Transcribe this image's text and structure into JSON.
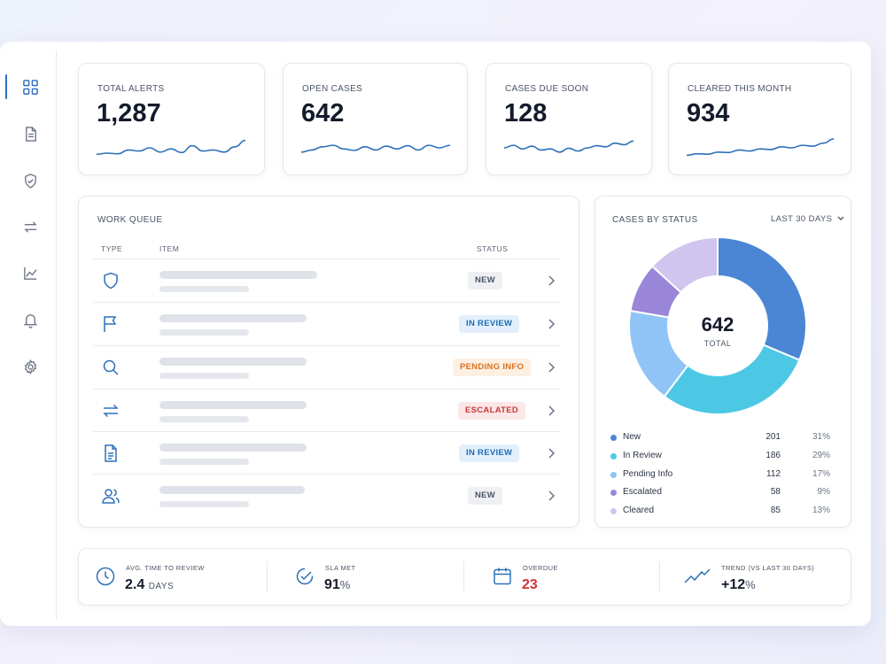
{
  "sidebar": {
    "items": [
      {
        "icon": "grid-icon",
        "active": true
      },
      {
        "icon": "document-icon",
        "active": false
      },
      {
        "icon": "shield-check-icon",
        "active": false
      },
      {
        "icon": "transfer-arrows-icon",
        "active": false
      },
      {
        "icon": "line-chart-icon",
        "active": false
      },
      {
        "icon": "bell-icon",
        "active": false
      },
      {
        "icon": "gear-icon",
        "active": false
      }
    ]
  },
  "kpis": [
    {
      "label": "TOTAL ALERTS",
      "value": "1,287",
      "trend": [
        0.2,
        0.25,
        0.22,
        0.4,
        0.35,
        0.5,
        0.3,
        0.45,
        0.28,
        0.6,
        0.35,
        0.4,
        0.3,
        0.55,
        0.85
      ]
    },
    {
      "label": "OPEN CASES",
      "value": "642",
      "trend": [
        0.3,
        0.4,
        0.55,
        0.62,
        0.45,
        0.38,
        0.55,
        0.4,
        0.58,
        0.45,
        0.6,
        0.4,
        0.62,
        0.5,
        0.62
      ]
    },
    {
      "label": "CASES DUE SOON",
      "value": "128",
      "trend": [
        0.5,
        0.62,
        0.45,
        0.58,
        0.4,
        0.45,
        0.3,
        0.48,
        0.35,
        0.5,
        0.6,
        0.55,
        0.72,
        0.65,
        0.82
      ]
    },
    {
      "label": "CLEARED THIS MONTH",
      "value": "934",
      "trend": [
        0.15,
        0.22,
        0.2,
        0.3,
        0.28,
        0.4,
        0.35,
        0.45,
        0.42,
        0.55,
        0.5,
        0.62,
        0.58,
        0.72,
        0.92
      ]
    }
  ],
  "work_queue": {
    "title": "WORK QUEUE",
    "columns": {
      "type": "TYPE",
      "item": "ITEM",
      "status": "STATUS"
    },
    "rows": [
      {
        "type_icon": "shield-icon",
        "status": "NEW",
        "status_color": "#4a5466",
        "status_bg": "#eef0f4"
      },
      {
        "type_icon": "flag-icon",
        "status": "IN REVIEW",
        "status_color": "#1f6db5",
        "status_bg": "#e3f0fb"
      },
      {
        "type_icon": "search-icon",
        "status": "PENDING INFO",
        "status_color": "#d9711c",
        "status_bg": "#fdf0e3"
      },
      {
        "type_icon": "transfer-arrows-icon",
        "status": "ESCALATED",
        "status_color": "#c83a3a",
        "status_bg": "#fbe7e7"
      },
      {
        "type_icon": "document-icon",
        "status": "IN REVIEW",
        "status_color": "#1f6db5",
        "status_bg": "#e3f0fb"
      },
      {
        "type_icon": "users-icon",
        "status": "NEW",
        "status_color": "#4a5466",
        "status_bg": "#eef0f4"
      }
    ]
  },
  "cases_by_status": {
    "title": "CASES BY STATUS",
    "range_label": "LAST 30 DAYS",
    "total_value": "642",
    "total_label": "TOTAL"
  },
  "chart_data": {
    "type": "pie",
    "categories": [
      "New",
      "In Review",
      "Pending Info",
      "Escalated",
      "Cleared"
    ],
    "values": [
      201,
      186,
      112,
      58,
      85
    ],
    "percent_labels": [
      "31%",
      "29%",
      "17%",
      "9%",
      "13%"
    ],
    "colors": [
      "#4a86d4",
      "#4cc8e4",
      "#90c4f6",
      "#9986d8",
      "#cfc5ee"
    ],
    "title": "CASES BY STATUS",
    "legend": "bottom"
  },
  "stats": [
    {
      "label": "AVG. TIME TO REVIEW",
      "value": "2.4",
      "unit": "DAYS",
      "value_color": "#141b2b",
      "icon": "clock-icon"
    },
    {
      "label": "SLA MET",
      "value": "91",
      "unit": "%",
      "value_color": "#141b2b",
      "icon": "check-circle-icon"
    },
    {
      "label": "OVERDUE",
      "value": "23",
      "unit": "",
      "value_color": "#d1343a",
      "icon": "calendar-icon"
    },
    {
      "label": "TREND (VS LAST 30 DAYS)",
      "value": "+12",
      "unit": "%",
      "value_color": "#141b2b",
      "icon": "trend-up-icon"
    }
  ],
  "colors": {
    "accent": "#2b6cc4",
    "icon": "#2e70b8"
  }
}
